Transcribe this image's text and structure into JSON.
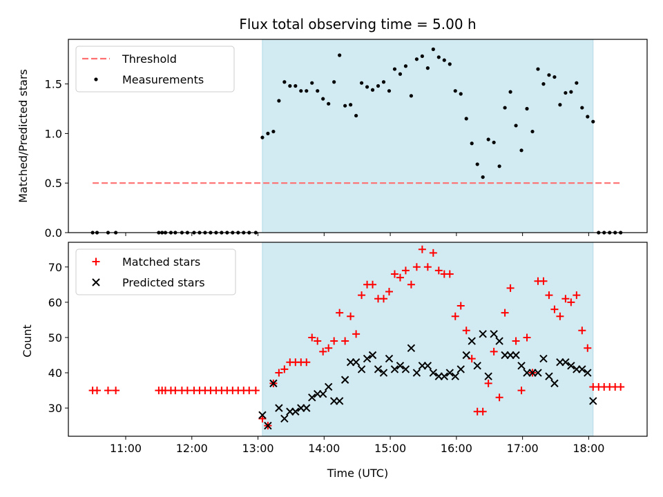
{
  "chart_data": [
    {
      "type": "scatter",
      "title": "Flux total observing time = 5.00 h",
      "xlabel": "",
      "ylabel": "Matched/Predicted stars",
      "xlim": [
        "10:08",
        "18:53"
      ],
      "ylim": [
        0,
        1.95
      ],
      "yticks": [
        0.0,
        0.5,
        1.0,
        1.5
      ],
      "ytick_labels": [
        "0.0",
        "0.5",
        "1.0",
        "1.5"
      ],
      "grid": false,
      "legend": "top-left",
      "shaded_span": {
        "start": "13:04",
        "end": "18:04",
        "color": "#add8e6"
      },
      "series": [
        {
          "name": "Threshold",
          "kind": "dashed-line",
          "color": "#ff6f6f",
          "x": [
            "10:30",
            "18:30"
          ],
          "y": [
            0.5,
            0.5
          ]
        },
        {
          "name": "Measurements",
          "kind": "points",
          "color": "#000000",
          "x": [
            "10:30",
            "10:34",
            "10:44",
            "10:51",
            "11:30",
            "11:33",
            "11:36",
            "11:41",
            "11:45",
            "11:51",
            "11:56",
            "12:02",
            "12:07",
            "12:12",
            "12:17",
            "12:22",
            "12:27",
            "12:32",
            "12:37",
            "12:42",
            "12:47",
            "12:52",
            "12:58",
            "13:04",
            "13:09",
            "13:14",
            "13:19",
            "13:24",
            "13:29",
            "13:34",
            "13:39",
            "13:44",
            "13:49",
            "13:54",
            "13:59",
            "14:04",
            "14:09",
            "14:14",
            "14:19",
            "14:24",
            "14:29",
            "14:34",
            "14:39",
            "14:44",
            "14:49",
            "14:54",
            "14:59",
            "15:04",
            "15:09",
            "15:14",
            "15:19",
            "15:24",
            "15:29",
            "15:34",
            "15:39",
            "15:44",
            "15:49",
            "15:54",
            "15:59",
            "16:04",
            "16:09",
            "16:14",
            "16:19",
            "16:24",
            "16:29",
            "16:34",
            "16:39",
            "16:44",
            "16:49",
            "16:54",
            "16:59",
            "17:04",
            "17:09",
            "17:14",
            "17:19",
            "17:24",
            "17:29",
            "17:34",
            "17:39",
            "17:44",
            "17:49",
            "17:54",
            "17:59",
            "18:04",
            "18:09",
            "18:14",
            "18:19",
            "18:24",
            "18:29"
          ],
          "y": [
            0,
            0,
            0,
            0,
            0,
            0,
            0,
            0,
            0,
            0,
            0,
            0,
            0,
            0,
            0,
            0,
            0,
            0,
            0,
            0,
            0,
            0,
            0,
            0.96,
            1.0,
            1.02,
            1.33,
            1.52,
            1.48,
            1.48,
            1.43,
            1.43,
            1.51,
            1.43,
            1.35,
            1.3,
            1.52,
            1.79,
            1.28,
            1.29,
            1.18,
            1.51,
            1.47,
            1.44,
            1.48,
            1.52,
            1.43,
            1.65,
            1.6,
            1.68,
            1.38,
            1.75,
            1.78,
            1.66,
            1.85,
            1.77,
            1.74,
            1.7,
            1.43,
            1.4,
            1.15,
            0.9,
            0.69,
            0.56,
            0.94,
            0.91,
            0.67,
            1.26,
            1.42,
            1.08,
            0.83,
            1.25,
            1.02,
            1.65,
            1.5,
            1.59,
            1.57,
            1.29,
            1.41,
            1.42,
            1.51,
            1.26,
            1.17,
            1.12,
            0,
            0,
            0,
            0,
            0
          ]
        }
      ]
    },
    {
      "type": "scatter",
      "title": "",
      "xlabel": "Time (UTC)",
      "ylabel": "Count",
      "xlim": [
        "10:08",
        "18:53"
      ],
      "xticks": [
        "11:00",
        "12:00",
        "13:00",
        "14:00",
        "15:00",
        "16:00",
        "17:00",
        "18:00"
      ],
      "ylim": [
        22,
        77
      ],
      "yticks": [
        30,
        40,
        50,
        60,
        70
      ],
      "ytick_labels": [
        "30",
        "40",
        "50",
        "60",
        "70"
      ],
      "grid": false,
      "legend": "top-left",
      "shaded_span": {
        "start": "13:04",
        "end": "18:04",
        "color": "#add8e6"
      },
      "series": [
        {
          "name": "Matched stars",
          "marker": "plus",
          "color": "#ff0000",
          "x": [
            "10:30",
            "10:34",
            "10:44",
            "10:51",
            "11:30",
            "11:33",
            "11:36",
            "11:41",
            "11:45",
            "11:51",
            "11:56",
            "12:02",
            "12:07",
            "12:12",
            "12:17",
            "12:22",
            "12:27",
            "12:32",
            "12:37",
            "12:42",
            "12:47",
            "12:52",
            "12:58",
            "13:04",
            "13:09",
            "13:14",
            "13:19",
            "13:24",
            "13:29",
            "13:34",
            "13:39",
            "13:44",
            "13:49",
            "13:54",
            "13:59",
            "14:04",
            "14:09",
            "14:14",
            "14:19",
            "14:24",
            "14:29",
            "14:34",
            "14:39",
            "14:44",
            "14:49",
            "14:54",
            "14:59",
            "15:04",
            "15:09",
            "15:14",
            "15:19",
            "15:24",
            "15:29",
            "15:34",
            "15:39",
            "15:44",
            "15:49",
            "15:54",
            "15:59",
            "16:04",
            "16:09",
            "16:14",
            "16:19",
            "16:24",
            "16:29",
            "16:34",
            "16:39",
            "16:44",
            "16:49",
            "16:54",
            "16:59",
            "17:04",
            "17:09",
            "17:14",
            "17:19",
            "17:24",
            "17:29",
            "17:34",
            "17:39",
            "17:44",
            "17:49",
            "17:54",
            "17:59",
            "18:04",
            "18:09",
            "18:14",
            "18:19",
            "18:24",
            "18:29"
          ],
          "y": [
            35,
            35,
            35,
            35,
            35,
            35,
            35,
            35,
            35,
            35,
            35,
            35,
            35,
            35,
            35,
            35,
            35,
            35,
            35,
            35,
            35,
            35,
            35,
            27,
            25,
            37,
            40,
            41,
            43,
            43,
            43,
            43,
            50,
            49,
            46,
            47,
            49,
            57,
            49,
            56,
            51,
            62,
            65,
            65,
            61,
            61,
            63,
            68,
            67,
            69,
            65,
            70,
            75,
            70,
            74,
            69,
            68,
            68,
            56,
            59,
            52,
            44,
            29,
            29,
            37,
            46,
            33,
            57,
            64,
            49,
            35,
            50,
            40,
            66,
            66,
            62,
            58,
            56,
            61,
            60,
            62,
            52,
            47,
            36,
            36,
            36,
            36,
            36,
            36
          ]
        },
        {
          "name": "Predicted stars",
          "marker": "x",
          "color": "#000000",
          "x": [
            "13:04",
            "13:09",
            "13:14",
            "13:19",
            "13:24",
            "13:29",
            "13:34",
            "13:39",
            "13:44",
            "13:49",
            "13:54",
            "13:59",
            "14:04",
            "14:09",
            "14:14",
            "14:19",
            "14:24",
            "14:29",
            "14:34",
            "14:39",
            "14:44",
            "14:49",
            "14:54",
            "14:59",
            "15:04",
            "15:09",
            "15:14",
            "15:19",
            "15:24",
            "15:29",
            "15:34",
            "15:39",
            "15:44",
            "15:49",
            "15:54",
            "15:59",
            "16:04",
            "16:09",
            "16:14",
            "16:19",
            "16:24",
            "16:29",
            "16:34",
            "16:39",
            "16:44",
            "16:49",
            "16:54",
            "16:59",
            "17:04",
            "17:09",
            "17:14",
            "17:19",
            "17:24",
            "17:29",
            "17:34",
            "17:39",
            "17:44",
            "17:49",
            "17:54",
            "17:59",
            "18:04"
          ],
          "y": [
            28,
            25,
            37,
            30,
            27,
            29,
            29,
            30,
            30,
            33,
            34,
            34,
            36,
            32,
            32,
            38,
            43,
            43,
            41,
            44,
            45,
            41,
            40,
            44,
            41,
            42,
            41,
            47,
            40,
            42,
            42,
            40,
            39,
            39,
            40,
            39,
            41,
            45,
            49,
            42,
            51,
            39,
            51,
            49,
            45,
            45,
            45,
            42,
            40,
            40,
            40,
            44,
            39,
            37,
            43,
            43,
            42,
            41,
            41,
            40,
            32
          ]
        }
      ]
    }
  ]
}
